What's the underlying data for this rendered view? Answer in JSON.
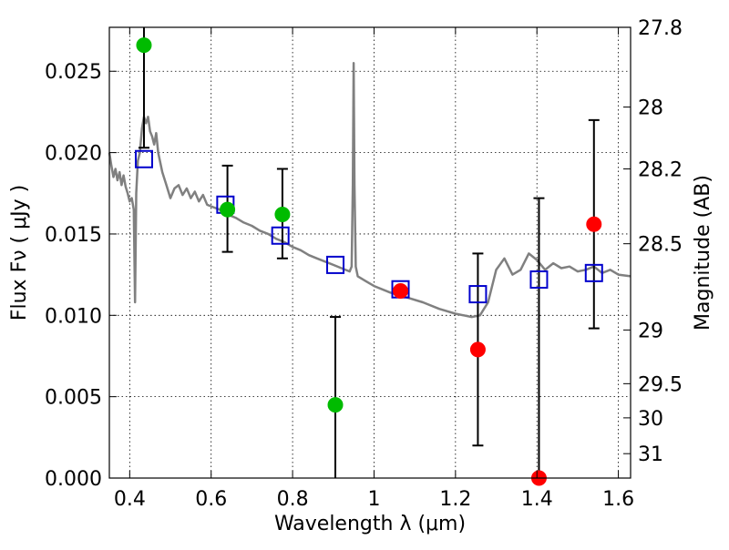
{
  "chart_data": {
    "type": "scatter",
    "title": "",
    "xlabel": "Wavelength  λ (μm)",
    "ylabel": "Flux  Fν  ( μJy )",
    "y2label": "Magnitude (AB)",
    "xlim": [
      0.35,
      1.63
    ],
    "ylim": [
      0.0,
      0.0277
    ],
    "grid": true,
    "xticks": [
      0.4,
      0.6,
      0.8,
      1.0,
      1.2,
      1.4,
      1.6
    ],
    "xtick_labels": [
      "0.4",
      "0.6",
      "0.8",
      "1",
      "1.2",
      "1.4",
      "1.6"
    ],
    "yticks": [
      0.0,
      0.005,
      0.01,
      0.015,
      0.02,
      0.025
    ],
    "ytick_labels": [
      "0.000",
      "0.005",
      "0.010",
      "0.015",
      "0.020",
      "0.025"
    ],
    "y2ticks": [
      {
        "label": "27.8",
        "flux": 0.0277
      },
      {
        "label": "28",
        "flux": 0.0228
      },
      {
        "label": "28.2",
        "flux": 0.019
      },
      {
        "label": "28.5",
        "flux": 0.0144
      },
      {
        "label": "29",
        "flux": 0.0091
      },
      {
        "label": "29.5",
        "flux": 0.0058
      },
      {
        "label": "30",
        "flux": 0.0037
      },
      {
        "label": "31",
        "flux": 0.0015
      }
    ],
    "model_spectrum": {
      "color": "#808080",
      "x": [
        0.35,
        0.355,
        0.36,
        0.365,
        0.37,
        0.375,
        0.38,
        0.385,
        0.39,
        0.395,
        0.4,
        0.405,
        0.41,
        0.413,
        0.416,
        0.42,
        0.425,
        0.43,
        0.435,
        0.44,
        0.445,
        0.45,
        0.455,
        0.46,
        0.465,
        0.47,
        0.48,
        0.49,
        0.5,
        0.51,
        0.52,
        0.53,
        0.54,
        0.55,
        0.56,
        0.57,
        0.58,
        0.59,
        0.6,
        0.62,
        0.64,
        0.66,
        0.68,
        0.7,
        0.72,
        0.74,
        0.76,
        0.78,
        0.8,
        0.82,
        0.84,
        0.86,
        0.88,
        0.9,
        0.92,
        0.94,
        0.945,
        0.948,
        0.95,
        0.952,
        0.955,
        0.96,
        0.98,
        1.0,
        1.04,
        1.08,
        1.12,
        1.16,
        1.2,
        1.24,
        1.26,
        1.28,
        1.3,
        1.32,
        1.34,
        1.36,
        1.38,
        1.4,
        1.42,
        1.44,
        1.46,
        1.48,
        1.5,
        1.52,
        1.54,
        1.56,
        1.58,
        1.6,
        1.63
      ],
      "y": [
        0.02,
        0.0192,
        0.0185,
        0.019,
        0.0183,
        0.0188,
        0.018,
        0.0186,
        0.0179,
        0.0175,
        0.017,
        0.0172,
        0.0165,
        0.0108,
        0.0175,
        0.0195,
        0.02,
        0.0215,
        0.0222,
        0.0218,
        0.0222,
        0.0213,
        0.021,
        0.0205,
        0.0212,
        0.02,
        0.0188,
        0.018,
        0.0172,
        0.0178,
        0.018,
        0.0174,
        0.0178,
        0.0172,
        0.0176,
        0.017,
        0.0174,
        0.0168,
        0.0167,
        0.0165,
        0.0162,
        0.016,
        0.0157,
        0.0155,
        0.0152,
        0.015,
        0.0147,
        0.0145,
        0.0142,
        0.014,
        0.0137,
        0.0135,
        0.0133,
        0.0131,
        0.0129,
        0.0127,
        0.013,
        0.018,
        0.0255,
        0.018,
        0.013,
        0.0124,
        0.0121,
        0.0118,
        0.0114,
        0.0111,
        0.0108,
        0.0104,
        0.0101,
        0.0099,
        0.01,
        0.0108,
        0.0128,
        0.0135,
        0.0125,
        0.0128,
        0.0138,
        0.0134,
        0.0128,
        0.0132,
        0.0129,
        0.013,
        0.0127,
        0.0128,
        0.013,
        0.0126,
        0.0128,
        0.0125,
        0.0124
      ]
    },
    "series": [
      {
        "marker": "open-square",
        "color": "#0000cc",
        "points": [
          {
            "x": 0.435,
            "y": 0.0196
          },
          {
            "x": 0.635,
            "y": 0.0168
          },
          {
            "x": 0.77,
            "y": 0.0149
          },
          {
            "x": 0.905,
            "y": 0.0131
          },
          {
            "x": 1.065,
            "y": 0.0116
          },
          {
            "x": 1.255,
            "y": 0.0113
          },
          {
            "x": 1.405,
            "y": 0.0122
          },
          {
            "x": 1.54,
            "y": 0.0126
          }
        ]
      },
      {
        "marker": "filled-circle",
        "color": "#00bb00",
        "points": [
          {
            "x": 0.435,
            "y": 0.0266,
            "yerr_low": 0.0203,
            "yerr_high": 0.0277
          },
          {
            "x": 0.64,
            "y": 0.0165,
            "yerr_low": 0.0139,
            "yerr_high": 0.0192
          },
          {
            "x": 0.775,
            "y": 0.0162,
            "yerr_low": 0.0135,
            "yerr_high": 0.019
          },
          {
            "x": 0.905,
            "y": 0.0045,
            "yerr_low": 0.0,
            "yerr_high": 0.0099
          }
        ]
      },
      {
        "marker": "filled-circle",
        "color": "#ff0000",
        "points": [
          {
            "x": 1.065,
            "y": 0.0115
          },
          {
            "x": 1.255,
            "y": 0.0079,
            "yerr_low": 0.002,
            "yerr_high": 0.0138
          },
          {
            "x": 1.405,
            "y": 0.0,
            "yerr_low": 0.0,
            "yerr_high": 0.0172
          },
          {
            "x": 1.54,
            "y": 0.0156,
            "yerr_low": 0.0092,
            "yerr_high": 0.022
          }
        ]
      }
    ]
  }
}
